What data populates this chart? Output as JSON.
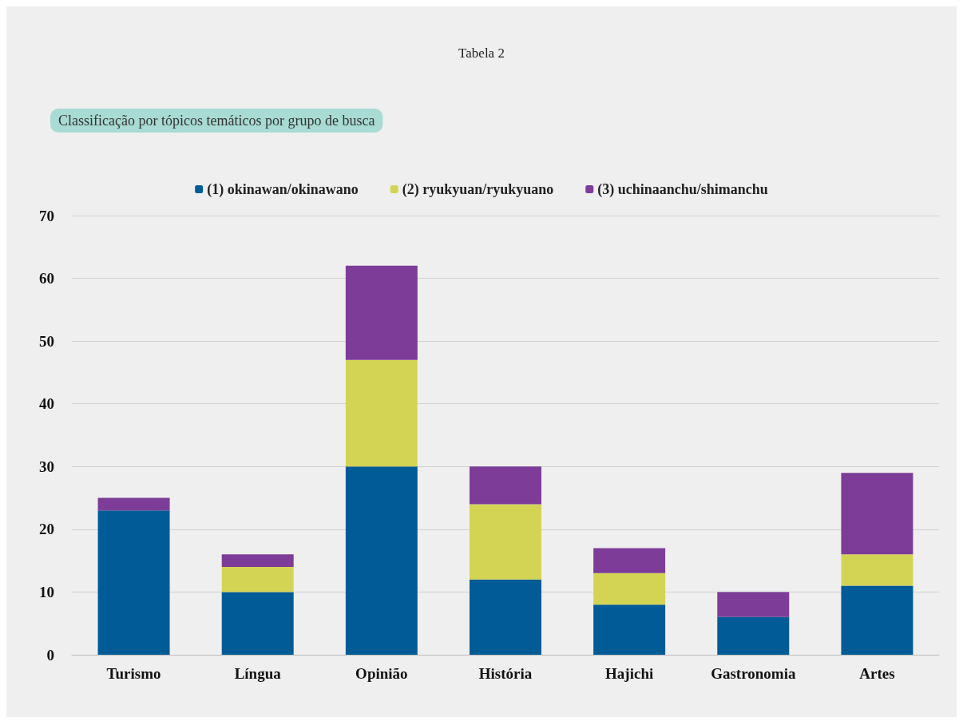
{
  "chart_data": {
    "type": "bar",
    "title": "Tabela 2",
    "subtitle": "Classificação por tópicos temáticos por grupo de busca",
    "categories": [
      "Turismo",
      "Língua",
      "Opinião",
      "História",
      "Hajichi",
      "Gastronomia",
      "Artes"
    ],
    "series": [
      {
        "name": "(1) okinawan/okinawano",
        "color": "#005b96",
        "values": [
          23,
          10,
          30,
          12,
          8,
          6,
          11
        ]
      },
      {
        "name": "(2) ryukyuan/ryukyuano",
        "color": "#d4d454",
        "values": [
          0,
          4,
          17,
          12,
          5,
          0,
          5
        ]
      },
      {
        "name": "(3) uchinaanchu/shimanchu",
        "color": "#7d3c98",
        "values": [
          2,
          2,
          15,
          6,
          4,
          4,
          13
        ]
      }
    ],
    "stacked": true,
    "ylim": [
      0,
      70
    ],
    "yticks": [
      0,
      10,
      20,
      30,
      40,
      50,
      60,
      70
    ],
    "grid": "y",
    "legend": "top"
  }
}
